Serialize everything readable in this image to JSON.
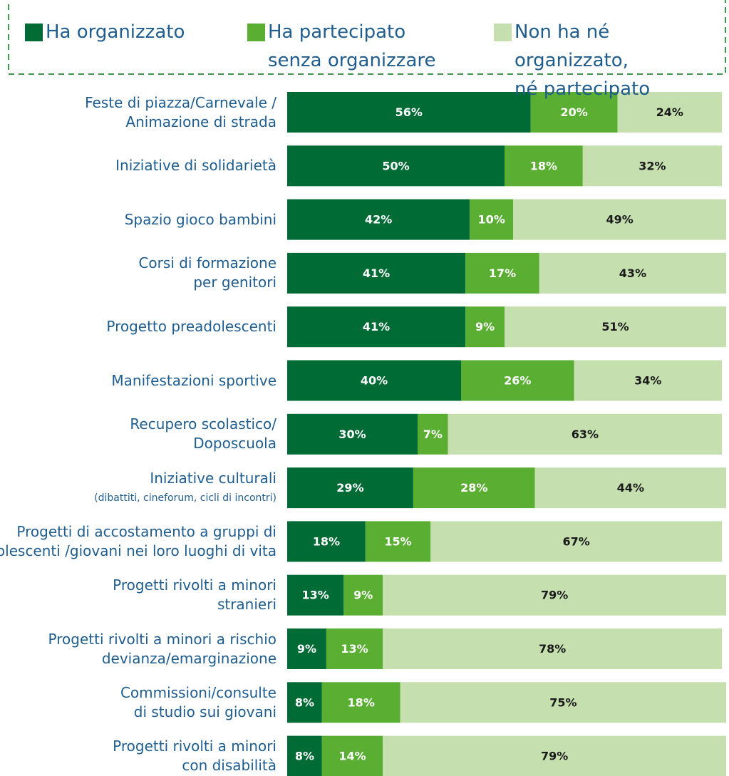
{
  "chart_data": {
    "type": "stacked-bar",
    "categories": [
      [
        "Feste di piazza/Carnevale /",
        "Animazione di strada"
      ],
      [
        "Iniziative di solidarietà"
      ],
      [
        "Spazio gioco bambini"
      ],
      [
        "Corsi di formazione",
        "per genitori"
      ],
      [
        "Progetto preadolescenti"
      ],
      [
        "Manifestazioni sportive"
      ],
      [
        "Recupero scolastico/",
        "Doposcuola"
      ],
      [
        "Iniziative culturali",
        "(dibattiti, cineforum, cicli di incontri)"
      ],
      [
        "Progetti di accostamento a gruppi di",
        "adolescenti /giovani nei loro luoghi di vita"
      ],
      [
        "Progetti rivolti a minori",
        "stranieri"
      ],
      [
        "Progetti rivolti a minori a rischio",
        "devianza/emarginazione"
      ],
      [
        "Commissioni/consulte",
        "di studio sui giovani"
      ],
      [
        "Progetti rivolti a minori",
        "con disabilità"
      ]
    ],
    "series": [
      {
        "name": "Ha organizzato",
        "color": "#006b35",
        "label_color": "#ffffff",
        "values": [
          56,
          50,
          42,
          41,
          41,
          40,
          30,
          29,
          18,
          13,
          9,
          8,
          8
        ],
        "value_labels": [
          "56%",
          "50%",
          "42%",
          "41%",
          "41%",
          "40%",
          "30%",
          "29%",
          "18%",
          "13%",
          "9%",
          "8%",
          "8%"
        ]
      },
      {
        "name": "Ha partecipato\nsenza organizzare",
        "color": "#5aae32",
        "label_color": "#ffffff",
        "values": [
          20,
          18,
          10,
          17,
          9,
          26,
          7,
          28,
          15,
          9,
          13,
          18,
          14
        ],
        "value_labels": [
          "20%",
          "18%",
          "10%",
          "17%",
          "9%",
          "26%",
          "7%",
          "28%",
          "15%",
          "9%",
          "13%",
          "18%",
          "14%"
        ]
      },
      {
        "name": "Non ha né organizzato,\nné partecipato",
        "color": "#c5dfae",
        "label_color": "#1a1a1a",
        "values": [
          24,
          32,
          49,
          43,
          51,
          34,
          63,
          44,
          67,
          79,
          78,
          75,
          79
        ],
        "value_labels": [
          "24%",
          "32%",
          "49%",
          "43%",
          "51%",
          "34%",
          "63%",
          "44%",
          "67%",
          "79%",
          "78%",
          "75%",
          "79%"
        ]
      }
    ]
  }
}
